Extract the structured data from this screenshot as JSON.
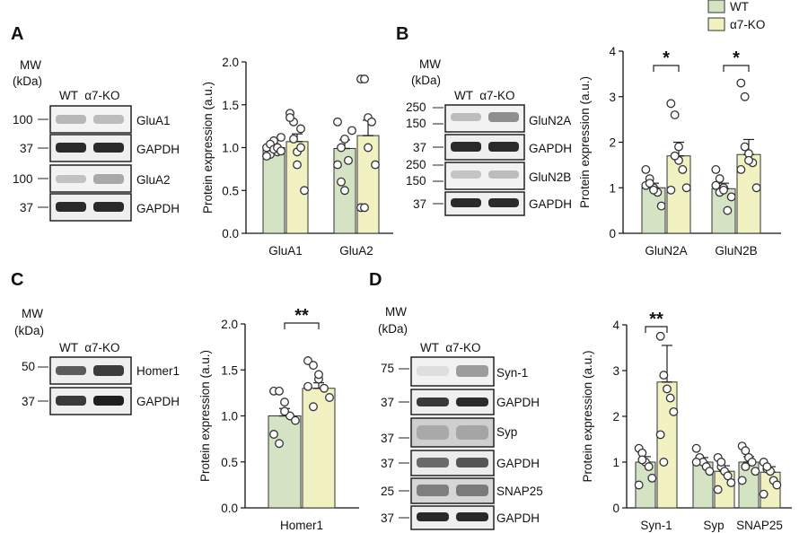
{
  "legend": {
    "items": [
      {
        "label": "WT",
        "color": "#d3e3c3"
      },
      {
        "label": "α7-KO",
        "color": "#f1f1c1"
      }
    ]
  },
  "colors": {
    "wt": "#d3e3c3",
    "ko": "#f1f1c1",
    "axis": "#111111",
    "dot_stroke": "#333333"
  },
  "panels": [
    {
      "letter": "A",
      "mw_line1": "MW",
      "mw_line2": "(kDa)",
      "lanes": "WT  α7-KO",
      "blots": [
        {
          "marker": "100",
          "label": "GluA1"
        },
        {
          "marker": "37",
          "label": "GAPDH"
        },
        {
          "marker": "100",
          "label": "GluA2"
        },
        {
          "marker": "37",
          "label": "GAPDH"
        }
      ]
    },
    {
      "letter": "B",
      "mw_line1": "MW",
      "mw_line2": "(kDa)",
      "lanes": "WT  α7-KO",
      "blots": [
        {
          "marker": "250",
          "marker2": "150",
          "label": "GluN2A"
        },
        {
          "marker": "37",
          "label": "GAPDH"
        },
        {
          "marker": "250",
          "marker2": "150",
          "label": "GluN2B"
        },
        {
          "marker": "37",
          "label": "GAPDH"
        }
      ]
    },
    {
      "letter": "C",
      "mw_line1": "MW",
      "mw_line2": "(kDa)",
      "lanes": "WT  α7-KO",
      "blots": [
        {
          "marker": "50",
          "label": "Homer1"
        },
        {
          "marker": "37",
          "label": "GAPDH"
        }
      ]
    },
    {
      "letter": "D",
      "mw_line1": "MW",
      "mw_line2": "(kDa)",
      "lanes": "WT  α7-KO",
      "blots": [
        {
          "marker": "75",
          "label": "Syn-1"
        },
        {
          "marker": "37",
          "label": "GAPDH"
        },
        {
          "marker": "37",
          "label": "Syp"
        },
        {
          "marker": "37",
          "label": "GAPDH"
        },
        {
          "marker": "25",
          "label": "SNAP25"
        },
        {
          "marker": "37",
          "label": "GAPDH"
        }
      ]
    }
  ],
  "chart_data": [
    {
      "id": "A",
      "type": "bar",
      "ylabel": "Protein expression (a.u.)",
      "ylim": [
        0,
        2.0
      ],
      "yticks": [
        "0.0",
        "0.5",
        "1.0",
        "1.5",
        "2.0"
      ],
      "categories": [
        "GluA1",
        "GluA2"
      ],
      "series": [
        {
          "name": "WT",
          "values": [
            1.0,
            0.99
          ],
          "sem": [
            0.03,
            0.1
          ],
          "points": [
            [
              1.0,
              0.92,
              1.08,
              0.95,
              1.12,
              0.9,
              1.04,
              0.98,
              1.0,
              0.96
            ],
            [
              1.3,
              0.6,
              1.1,
              0.85,
              1.2,
              0.8,
              1.0,
              0.5
            ]
          ]
        },
        {
          "name": "α7-KO",
          "values": [
            1.07,
            1.14
          ],
          "sem": [
            0.09,
            0.18
          ],
          "points": [
            [
              1.4,
              1.3,
              0.8,
              1.22,
              0.5,
              1.35,
              1.1,
              0.95,
              1.0
            ],
            [
              1.8,
              1.8,
              1.35,
              1.3,
              0.8,
              0.3,
              0.3,
              1.0
            ]
          ]
        }
      ],
      "annotations": []
    },
    {
      "id": "B",
      "type": "bar",
      "ylabel": "Protein expression (a.u.)",
      "ylim": [
        0,
        4
      ],
      "yticks": [
        "0",
        "1",
        "2",
        "3",
        "4"
      ],
      "categories": [
        "GluN2A",
        "GluN2B"
      ],
      "series": [
        {
          "name": "WT",
          "values": [
            1.0,
            0.98
          ],
          "sem": [
            0.1,
            0.12
          ],
          "points": [
            [
              1.4,
              1.2,
              1.0,
              0.9,
              0.6,
              1.05,
              1.1,
              0.95
            ],
            [
              1.4,
              1.2,
              1.0,
              0.5,
              0.8,
              1.05,
              0.9,
              0.95
            ]
          ]
        },
        {
          "name": "α7-KO",
          "values": [
            1.7,
            1.73
          ],
          "sem": [
            0.3,
            0.33
          ],
          "points": [
            [
              2.85,
              2.6,
              1.6,
              1.4,
              1.0,
              0.95,
              1.7,
              1.9
            ],
            [
              3.3,
              3.0,
              1.75,
              1.55,
              1.0,
              1.4,
              1.9,
              1.6
            ]
          ]
        }
      ],
      "annotations": [
        {
          "text": "*",
          "between": [
            0,
            0
          ]
        },
        {
          "text": "*",
          "between": [
            1,
            1
          ]
        }
      ]
    },
    {
      "id": "C",
      "type": "bar",
      "ylabel": "Protein expression (a.u.)",
      "ylim": [
        0,
        2.0
      ],
      "yticks": [
        "0.0",
        "0.5",
        "1.0",
        "1.5",
        "2.0"
      ],
      "categories": [
        "Homer1"
      ],
      "series": [
        {
          "name": "WT",
          "values": [
            1.0
          ],
          "sem": [
            0.08
          ],
          "points": [
            [
              1.27,
              1.27,
              1.15,
              1.0,
              0.95,
              0.8,
              0.7,
              1.05
            ]
          ]
        },
        {
          "name": "α7-KO",
          "values": [
            1.3
          ],
          "sem": [
            0.06
          ],
          "points": [
            [
              1.6,
              1.55,
              1.4,
              1.3,
              1.2,
              1.32,
              1.1,
              1.45
            ]
          ]
        }
      ],
      "annotations": [
        {
          "text": "**",
          "between": [
            0,
            0
          ]
        }
      ]
    },
    {
      "id": "D",
      "type": "bar",
      "ylabel": "Protein expression (a.u.)",
      "ylim": [
        0,
        4
      ],
      "yticks": [
        "0",
        "1",
        "2",
        "3",
        "4"
      ],
      "categories": [
        "Syn-1",
        "Syp",
        "SNAP25"
      ],
      "series": [
        {
          "name": "WT",
          "values": [
            1.0,
            1.0,
            1.0
          ],
          "sem": [
            0.12,
            0.1,
            0.12
          ],
          "points": [
            [
              1.3,
              1.2,
              1.0,
              0.9,
              0.65,
              0.5,
              1.05
            ],
            [
              1.3,
              1.1,
              1.0,
              0.9,
              0.8,
              1.0
            ],
            [
              1.35,
              1.25,
              1.1,
              1.0,
              0.8,
              0.6,
              0.9
            ]
          ]
        },
        {
          "name": "α7-KO",
          "values": [
            2.75,
            0.8,
            0.78
          ],
          "sem": [
            0.8,
            0.12,
            0.12
          ],
          "points": [
            [
              3.75,
              2.9,
              2.6,
              2.4,
              2.1,
              1.6,
              1.0
            ],
            [
              1.1,
              0.9,
              0.8,
              0.7,
              0.55,
              0.4,
              1.0
            ],
            [
              1.0,
              0.85,
              0.8,
              0.6,
              0.5,
              0.3,
              0.9
            ]
          ]
        }
      ],
      "annotations": [
        {
          "text": "**",
          "between": [
            0,
            0
          ]
        }
      ]
    }
  ]
}
